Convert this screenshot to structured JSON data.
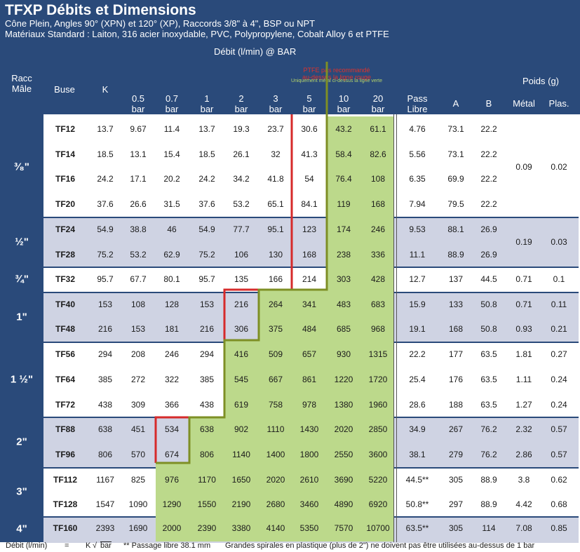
{
  "title": "TFXP Débits et Dimensions",
  "subtitle1": "Cône Plein, Angles 90° (XPN) et 120° (XP), Raccords 3/8\" à 4\", BSP ou NPT",
  "subtitle2": "Matériaux Standard : Laiton, 316 acier inoxydable, PVC, Polypropylene, Cobalt Alloy 6 et PTFE",
  "flow_header": "Débit (l/min) @ BAR",
  "ptfe_note": [
    "PTFE pas recommandé",
    "au-dessus la ligne rouge"
  ],
  "metal_note": "Uniquement métal ci-dessus la ligne verte",
  "headers": {
    "racc": [
      "Racc",
      "Mâle"
    ],
    "buse": "Buse",
    "k": "K",
    "pressures": [
      [
        "0.5",
        "bar"
      ],
      [
        "0.7",
        "bar"
      ],
      [
        "1",
        "bar"
      ],
      [
        "2",
        "bar"
      ],
      [
        "3",
        "bar"
      ],
      [
        "5",
        "bar"
      ],
      [
        "10",
        "bar"
      ],
      [
        "20",
        "bar"
      ]
    ],
    "pass": [
      "Pass",
      "Libre"
    ],
    "a": "A",
    "b": "B",
    "poids": "Poids (g)",
    "metal": "Métal",
    "plas": "Plas."
  },
  "groups": [
    {
      "label": "³⁄₈\"",
      "shaded": false,
      "metal": "0.09",
      "plas": "0.02"
    },
    {
      "label": "½\"",
      "shaded": true,
      "metal": "0.19",
      "plas": "0.03"
    },
    {
      "label": "¾\"",
      "shaded": false
    },
    {
      "label": "1\"",
      "shaded": true
    },
    {
      "label": "1 ½\"",
      "shaded": false
    },
    {
      "label": "2\"",
      "shaded": true
    },
    {
      "label": "3\"",
      "shaded": false
    },
    {
      "label": "4\"",
      "shaded": true
    }
  ],
  "rows": [
    {
      "buse": "TF12",
      "k": "13.7",
      "flows": [
        "9.67",
        "11.4",
        "13.7",
        "19.3",
        "23.7",
        "30.6",
        "43.2",
        "61.1"
      ],
      "pass": "4.76",
      "a": "73.1",
      "b": "22.2"
    },
    {
      "buse": "TF14",
      "k": "18.5",
      "flows": [
        "13.1",
        "15.4",
        "18.5",
        "26.1",
        "32",
        "41.3",
        "58.4",
        "82.6"
      ],
      "pass": "5.56",
      "a": "73.1",
      "b": "22.2"
    },
    {
      "buse": "TF16",
      "k": "24.2",
      "flows": [
        "17.1",
        "20.2",
        "24.2",
        "34.2",
        "41.8",
        "54",
        "76.4",
        "108"
      ],
      "pass": "6.35",
      "a": "69.9",
      "b": "22.2"
    },
    {
      "buse": "TF20",
      "k": "37.6",
      "flows": [
        "26.6",
        "31.5",
        "37.6",
        "53.2",
        "65.1",
        "84.1",
        "119",
        "168"
      ],
      "pass": "7.94",
      "a": "79.5",
      "b": "22.2"
    },
    {
      "buse": "TF24",
      "k": "54.9",
      "flows": [
        "38.8",
        "46",
        "54.9",
        "77.7",
        "95.1",
        "123",
        "174",
        "246"
      ],
      "pass": "9.53",
      "a": "88.1",
      "b": "26.9"
    },
    {
      "buse": "TF28",
      "k": "75.2",
      "flows": [
        "53.2",
        "62.9",
        "75.2",
        "106",
        "130",
        "168",
        "238",
        "336"
      ],
      "pass": "11.1",
      "a": "88.9",
      "b": "26.9"
    },
    {
      "buse": "TF32",
      "k": "95.7",
      "flows": [
        "67.7",
        "80.1",
        "95.7",
        "135",
        "166",
        "214",
        "303",
        "428"
      ],
      "pass": "12.7",
      "a": "137",
      "b": "44.5",
      "metal": "0.71",
      "plas": "0.1"
    },
    {
      "buse": "TF40",
      "k": "153",
      "flows": [
        "108",
        "128",
        "153",
        "216",
        "264",
        "341",
        "483",
        "683"
      ],
      "pass": "15.9",
      "a": "133",
      "b": "50.8",
      "metal": "0.71",
      "plas": "0.11"
    },
    {
      "buse": "TF48",
      "k": "216",
      "flows": [
        "153",
        "181",
        "216",
        "306",
        "375",
        "484",
        "685",
        "968"
      ],
      "pass": "19.1",
      "a": "168",
      "b": "50.8",
      "metal": "0.93",
      "plas": "0.21"
    },
    {
      "buse": "TF56",
      "k": "294",
      "flows": [
        "208",
        "246",
        "294",
        "416",
        "509",
        "657",
        "930",
        "1315"
      ],
      "pass": "22.2",
      "a": "177",
      "b": "63.5",
      "metal": "1.81",
      "plas": "0.27"
    },
    {
      "buse": "TF64",
      "k": "385",
      "flows": [
        "272",
        "322",
        "385",
        "545",
        "667",
        "861",
        "1220",
        "1720"
      ],
      "pass": "25.4",
      "a": "176",
      "b": "63.5",
      "metal": "1.11",
      "plas": "0.24"
    },
    {
      "buse": "TF72",
      "k": "438",
      "flows": [
        "309",
        "366",
        "438",
        "619",
        "758",
        "978",
        "1380",
        "1960"
      ],
      "pass": "28.6",
      "a": "188",
      "b": "63.5",
      "metal": "1.27",
      "plas": "0.24"
    },
    {
      "buse": "TF88",
      "k": "638",
      "flows": [
        "451",
        "534",
        "638",
        "902",
        "1110",
        "1430",
        "2020",
        "2850"
      ],
      "pass": "34.9",
      "a": "267",
      "b": "76.2",
      "metal": "2.32",
      "plas": "0.57"
    },
    {
      "buse": "TF96",
      "k": "806",
      "flows": [
        "570",
        "674",
        "806",
        "1140",
        "1400",
        "1800",
        "2550",
        "3600"
      ],
      "pass": "38.1",
      "a": "279",
      "b": "76.2",
      "metal": "2.86",
      "plas": "0.57"
    },
    {
      "buse": "TF112",
      "k": "1167",
      "flows": [
        "825",
        "976",
        "1170",
        "1650",
        "2020",
        "2610",
        "3690",
        "5220"
      ],
      "pass": "44.5**",
      "a": "305",
      "b": "88.9",
      "metal": "3.8",
      "plas": "0.62"
    },
    {
      "buse": "TF128",
      "k": "1547",
      "flows": [
        "1090",
        "1290",
        "1550",
        "2190",
        "2680",
        "3460",
        "4890",
        "6920"
      ],
      "pass": "50.8**",
      "a": "297",
      "b": "88.9",
      "metal": "4.42",
      "plas": "0.68"
    },
    {
      "buse": "TF160",
      "k": "2393",
      "flows": [
        "1690",
        "2000",
        "2390",
        "3380",
        "4140",
        "5350",
        "7570",
        "10700"
      ],
      "pass": "63.5**",
      "a": "305",
      "b": "114",
      "metal": "7.08",
      "plas": "0.85"
    }
  ],
  "footer": {
    "debit": "Débit (l/min)",
    "eq": "=",
    "k": "K",
    "bar": "bar",
    "pass_note": "** Passage libre  38.1 mm",
    "spiral_note": "Grandes spirales en plastique (plus de 2\") ne doivent pas être utilisées au-dessus de 1 bar"
  },
  "colors": {
    "header_bg": "#2a4a7a",
    "band": "#cfd3e3",
    "green": "#bcd98b",
    "red_line": "#d62a2a",
    "green_line": "#7e8f25"
  }
}
